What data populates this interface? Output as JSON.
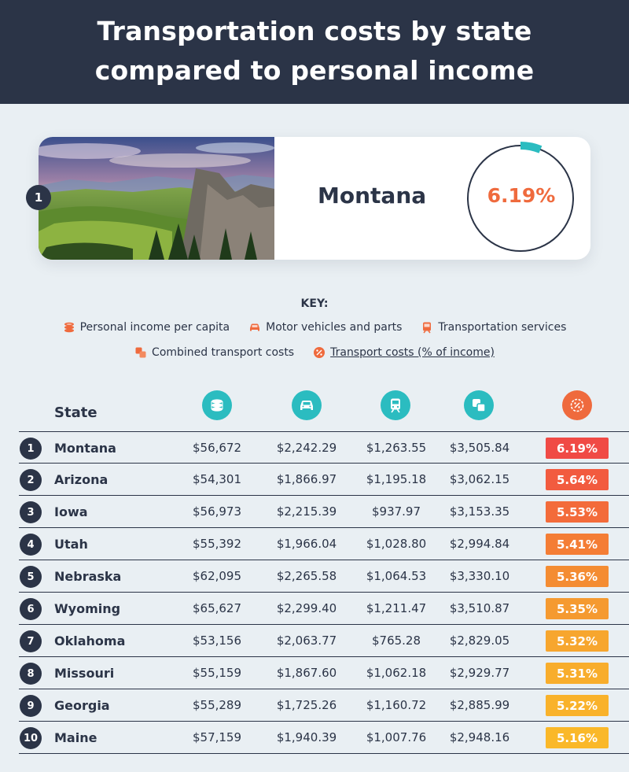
{
  "header": {
    "title_line1": "Transportation costs by state",
    "title_line2": "compared to personal income"
  },
  "feature": {
    "rank": "1",
    "state": "Montana",
    "percent": "6.19%",
    "ring_value": 0.0619
  },
  "key": {
    "title": "KEY:",
    "items": [
      {
        "label": "Personal income per capita",
        "icon": "coins-icon"
      },
      {
        "label": "Motor vehicles and parts",
        "icon": "car-icon"
      },
      {
        "label": "Transportation services",
        "icon": "train-icon"
      },
      {
        "label": "Combined transport costs",
        "icon": "combined-icon"
      },
      {
        "label": "Transport costs (% of income)",
        "icon": "percent-icon"
      }
    ]
  },
  "colors": {
    "navy": "#2b3447",
    "teal": "#2bbcc0",
    "orange": "#ef6a3d",
    "badge_gradient": [
      "#f04a45",
      "#f25b3f",
      "#f36b3a",
      "#f47d35",
      "#f48c32",
      "#f59a30",
      "#f7a62e",
      "#f8ad2c",
      "#f9b22b",
      "#fab829"
    ]
  },
  "chart_data": {
    "type": "table",
    "columns": [
      "State",
      "Personal income per capita",
      "Motor vehicles and parts",
      "Transportation services",
      "Combined transport costs",
      "Transport costs (% of income)"
    ],
    "header_state": "State",
    "rows": [
      {
        "rank": "1",
        "state": "Montana",
        "income": "$56,672",
        "motor": "$2,242.29",
        "services": "$1,263.55",
        "combined": "$3,505.84",
        "percent": "6.19%"
      },
      {
        "rank": "2",
        "state": "Arizona",
        "income": "$54,301",
        "motor": "$1,866.97",
        "services": "$1,195.18",
        "combined": "$3,062.15",
        "percent": "5.64%"
      },
      {
        "rank": "3",
        "state": "Iowa",
        "income": "$56,973",
        "motor": "$2,215.39",
        "services": "$937.97",
        "combined": "$3,153.35",
        "percent": "5.53%"
      },
      {
        "rank": "4",
        "state": "Utah",
        "income": "$55,392",
        "motor": "$1,966.04",
        "services": "$1,028.80",
        "combined": "$2,994.84",
        "percent": "5.41%"
      },
      {
        "rank": "5",
        "state": "Nebraska",
        "income": "$62,095",
        "motor": "$2,265.58",
        "services": "$1,064.53",
        "combined": "$3,330.10",
        "percent": "5.36%"
      },
      {
        "rank": "6",
        "state": "Wyoming",
        "income": "$65,627",
        "motor": "$2,299.40",
        "services": "$1,211.47",
        "combined": "$3,510.87",
        "percent": "5.35%"
      },
      {
        "rank": "7",
        "state": "Oklahoma",
        "income": "$53,156",
        "motor": "$2,063.77",
        "services": "$765.28",
        "combined": "$2,829.05",
        "percent": "5.32%"
      },
      {
        "rank": "8",
        "state": "Missouri",
        "income": "$55,159",
        "motor": "$1,867.60",
        "services": "$1,062.18",
        "combined": "$2,929.77",
        "percent": "5.31%"
      },
      {
        "rank": "9",
        "state": "Georgia",
        "income": "$55,289",
        "motor": "$1,725.26",
        "services": "$1,160.72",
        "combined": "$2,885.99",
        "percent": "5.22%"
      },
      {
        "rank": "10",
        "state": "Maine",
        "income": "$57,159",
        "motor": "$1,940.39",
        "services": "$1,007.76",
        "combined": "$2,948.16",
        "percent": "5.16%"
      }
    ]
  }
}
